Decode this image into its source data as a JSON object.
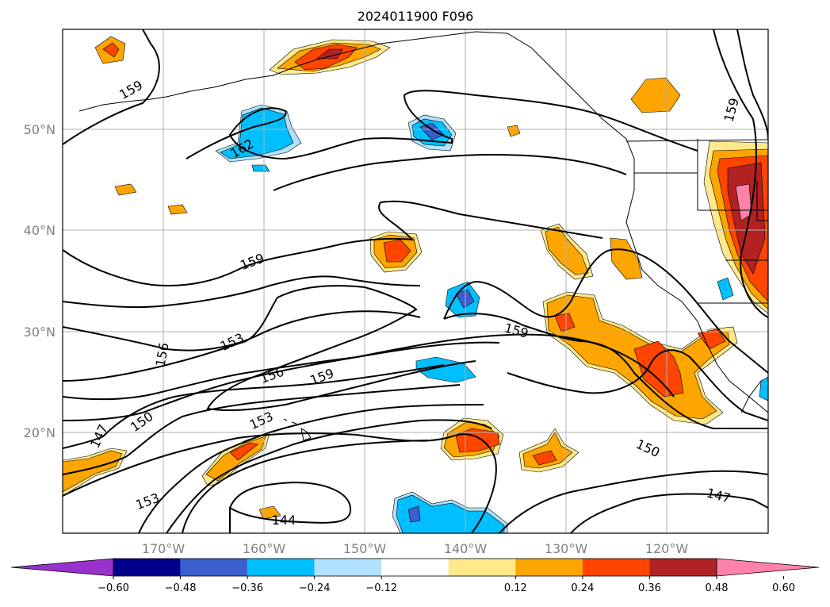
{
  "title": "2024011900 F096",
  "lon_labels": [
    "170°W",
    "160°W",
    "150°W",
    "140°W",
    "130°W",
    "120°W"
  ],
  "lat_labels": [
    "50°N",
    "40°N",
    "30°N",
    "20°N"
  ],
  "contour_labels": [
    "159",
    "162",
    "159",
    "156",
    "153",
    "156",
    "159",
    "159",
    "153",
    "150",
    "147",
    "153",
    "144",
    "150",
    "147",
    "159"
  ],
  "colorbar": {
    "ticks": [
      "−0.60",
      "−0.48",
      "−0.36",
      "−0.24",
      "−0.12",
      "0.12",
      "0.24",
      "0.36",
      "0.48",
      "0.60"
    ],
    "colors": [
      "#9932cc",
      "#00008b",
      "#3a5fcd",
      "#00bfff",
      "#b0e2ff",
      "#ffffff",
      "#ffe98a",
      "#ffa500",
      "#ff4500",
      "#b22222",
      "#ff82ab"
    ]
  },
  "field_colors": {
    "pink": "#ff82ab",
    "darkred": "#b22222",
    "red": "#ff4500",
    "orange": "#ffa500",
    "yellow": "#ffe98a",
    "lightblue": "#b0e2ff",
    "blue": "#00bfff",
    "medblue": "#3a5fcd"
  }
}
